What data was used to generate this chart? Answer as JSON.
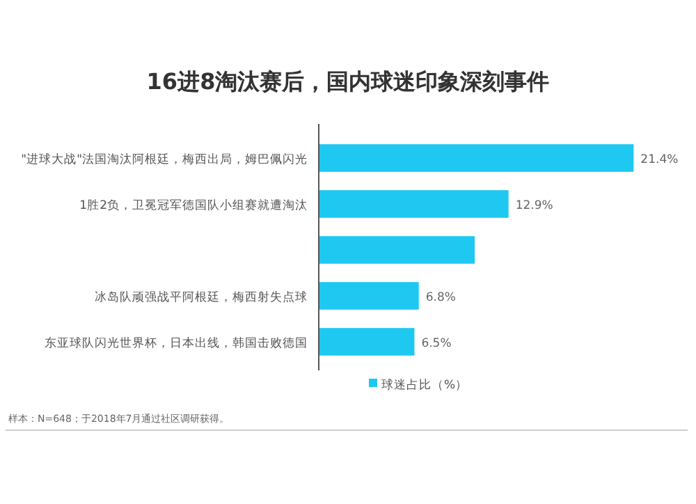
{
  "chart_data": {
    "type": "bar",
    "orientation": "horizontal",
    "title": "16进8淘汰赛后，国内球迷印象深刻事件",
    "categories": [
      "\"进球大战\"法国淘汰阿根廷，梅西出局，姆巴佩闪光",
      "1胜2负，卫冕冠军德国队小组赛就遭淘汰",
      null,
      "冰岛队顽强战平阿根廷，梅西射失点球",
      "东亚球队闪光世界杯，日本出线，韩国击败德国"
    ],
    "series": [
      {
        "name": "球迷占比（%）",
        "color": "#1fc8f0",
        "values": [
          21.4,
          12.9,
          10.6,
          6.8,
          6.5
        ],
        "value_labels": [
          "21.4%",
          "12.9%",
          null,
          "6.8%",
          "6.5%"
        ]
      }
    ],
    "tick_labels": "y",
    "legend": "bottom",
    "annotations": [
      "样本：N=648；于2018年7月通过社区调研获得。"
    ]
  }
}
